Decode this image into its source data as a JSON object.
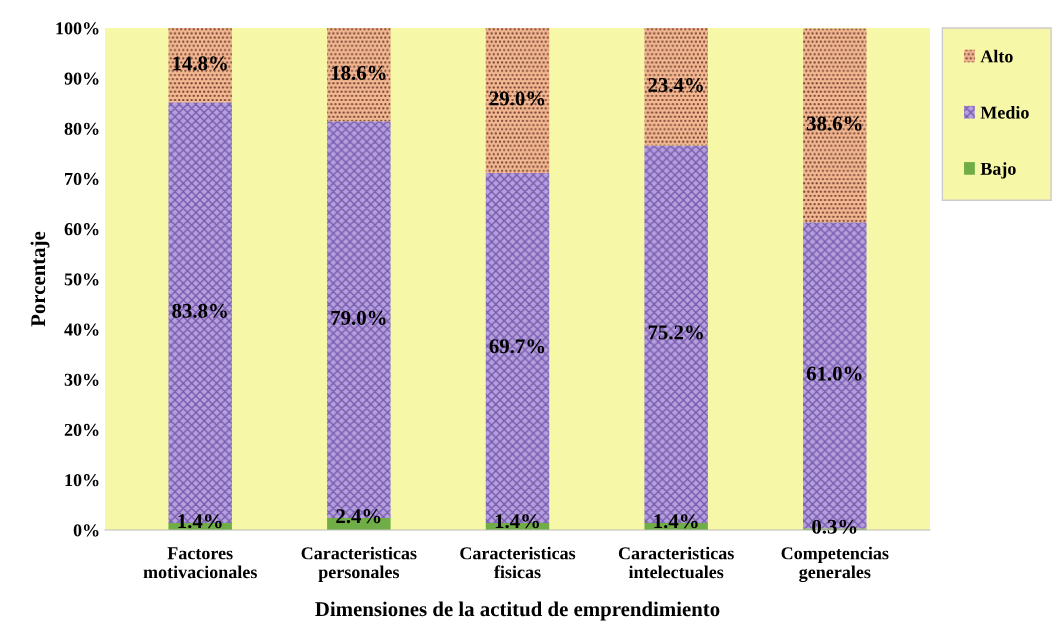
{
  "chart_data": {
    "type": "bar",
    "stacked": true,
    "xlabel": "Dimensiones de la actitud de emprendimiento",
    "ylabel": "Porcentaje",
    "categories": [
      "Factores\nmotivacionales",
      "Caracteristicas\npersonales",
      "Caracteristicas\nfisicas",
      "Caracteristicas\nintelectuales",
      "Competencias\ngenerales"
    ],
    "series": [
      {
        "name": "Bajo",
        "color": "#70ad47",
        "values": [
          1.4,
          2.4,
          1.4,
          1.4,
          0.3
        ],
        "value_labels": [
          "1.4%",
          "2.4%",
          "1.4%",
          "1.4%",
          "0.3%"
        ]
      },
      {
        "name": "Medio",
        "color": "#b4a0dc",
        "values": [
          83.8,
          79.0,
          69.7,
          75.2,
          61.0
        ],
        "value_labels": [
          "83.8%",
          "79.0%",
          "69.7%",
          "75.2%",
          "61.0%"
        ]
      },
      {
        "name": "Alto",
        "color": "#f4b892",
        "values": [
          14.8,
          18.6,
          29.0,
          23.4,
          38.6
        ],
        "value_labels": [
          "14.8%",
          "18.6%",
          "29.0%",
          "23.4%",
          "38.6%"
        ]
      }
    ],
    "ylim": [
      0,
      100
    ],
    "yticks": [
      {
        "value": 0,
        "label": "0%"
      },
      {
        "value": 10,
        "label": "10%"
      },
      {
        "value": 20,
        "label": "20%"
      },
      {
        "value": 30,
        "label": "30%"
      },
      {
        "value": 40,
        "label": "40%"
      },
      {
        "value": 50,
        "label": "50%"
      },
      {
        "value": 60,
        "label": "60%"
      },
      {
        "value": 70,
        "label": "70%"
      },
      {
        "value": 80,
        "label": "80%"
      },
      {
        "value": 90,
        "label": "90%"
      },
      {
        "value": 100,
        "label": "100%"
      }
    ],
    "grid": false,
    "legend": "right"
  }
}
